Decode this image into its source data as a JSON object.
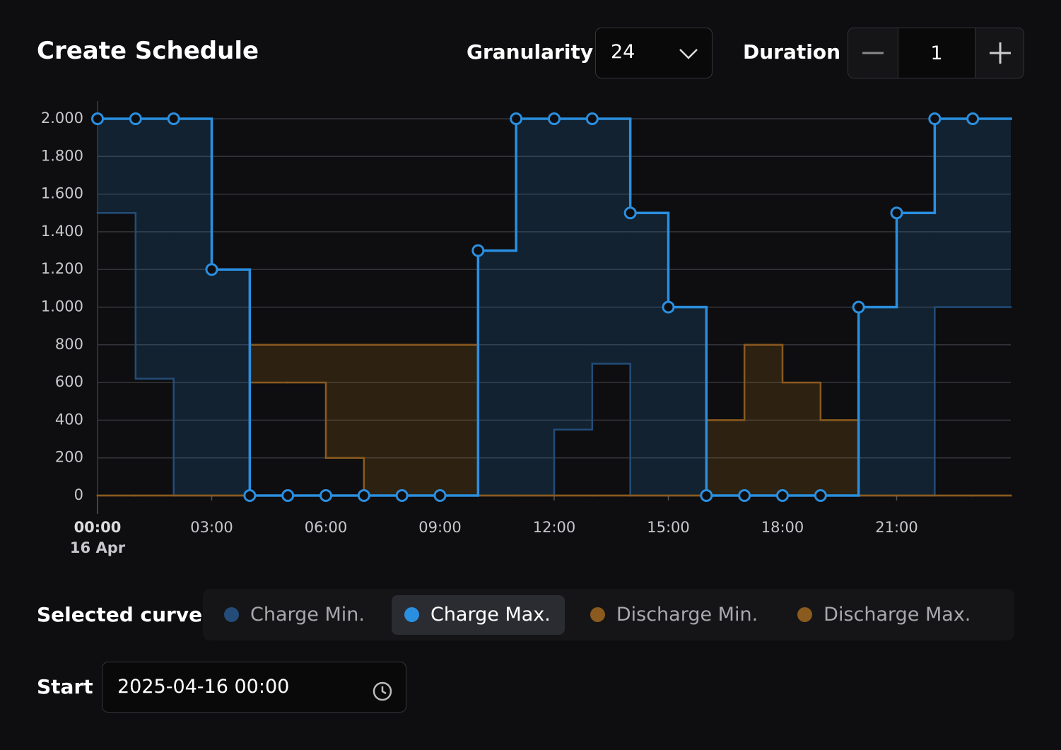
{
  "header": {
    "title": "Create Schedule",
    "granularity_label": "Granularity",
    "granularity_value": "24",
    "duration_label": "Duration",
    "duration_value": "1"
  },
  "chart_data": {
    "type": "step",
    "x": [
      0,
      1,
      2,
      3,
      4,
      5,
      6,
      7,
      8,
      9,
      10,
      11,
      12,
      13,
      14,
      15,
      16,
      17,
      18,
      19,
      20,
      21,
      22,
      23
    ],
    "xlim": [
      0,
      24
    ],
    "xticks": [
      {
        "value": 0,
        "label": "00:00"
      },
      {
        "value": 3,
        "label": "03:00"
      },
      {
        "value": 6,
        "label": "06:00"
      },
      {
        "value": 9,
        "label": "09:00"
      },
      {
        "value": 12,
        "label": "12:00"
      },
      {
        "value": 15,
        "label": "15:00"
      },
      {
        "value": 18,
        "label": "18:00"
      },
      {
        "value": 21,
        "label": "21:00"
      }
    ],
    "date_label": "16 Apr",
    "ylim": [
      0,
      2000
    ],
    "yticks": [
      0,
      200,
      400,
      600,
      800,
      {
        "value": 1000,
        "label": "1.000"
      },
      {
        "value": 1200,
        "label": "1.200"
      },
      {
        "value": 1400,
        "label": "1.400"
      },
      {
        "value": 1600,
        "label": "1.600"
      },
      {
        "value": 1800,
        "label": "1.800"
      },
      {
        "value": 2000,
        "label": "2.000"
      }
    ],
    "grid": true,
    "series": [
      {
        "name": "Charge Min.",
        "color": "#234c78",
        "values": [
          1500,
          620,
          0,
          0,
          0,
          0,
          0,
          0,
          0,
          0,
          0,
          0,
          350,
          700,
          0,
          0,
          0,
          0,
          0,
          0,
          0,
          0,
          1000,
          1000
        ]
      },
      {
        "name": "Charge Max.",
        "color": "#2b8fe0",
        "selected": true,
        "values": [
          2000,
          2000,
          2000,
          1200,
          0,
          0,
          0,
          0,
          0,
          0,
          1300,
          2000,
          2000,
          2000,
          1500,
          1000,
          0,
          0,
          0,
          0,
          1000,
          1500,
          2000,
          2000
        ]
      },
      {
        "name": "Discharge Min.",
        "color": "#8a5a1e",
        "values": [
          0,
          0,
          0,
          0,
          600,
          600,
          200,
          0,
          0,
          0,
          0,
          0,
          0,
          0,
          0,
          0,
          0,
          0,
          0,
          0,
          0,
          0,
          0,
          0
        ]
      },
      {
        "name": "Discharge Max.",
        "color": "#8a5a1e",
        "values": [
          0,
          0,
          0,
          0,
          800,
          800,
          800,
          800,
          800,
          800,
          0,
          0,
          0,
          0,
          0,
          0,
          400,
          800,
          600,
          400,
          0,
          0,
          0,
          0
        ]
      }
    ]
  },
  "legend_label": "Selected curve",
  "start": {
    "label": "Start",
    "value": "2025-04-16 00:00"
  }
}
